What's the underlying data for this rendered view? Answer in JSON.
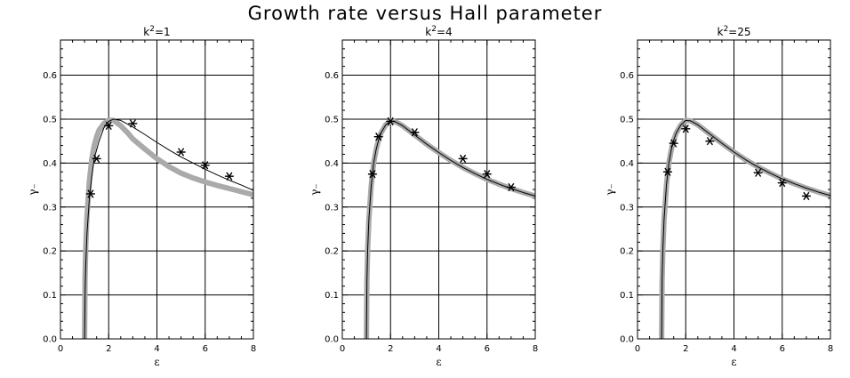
{
  "figure": {
    "title": "Growth rate versus Hall parameter"
  },
  "chart_data": [
    {
      "type": "line",
      "title_base": "k",
      "title_exp": "2",
      "title_tail": "=1",
      "xlabel": "ε",
      "ylabel": "γ₋",
      "xlim": [
        0,
        8
      ],
      "ylim": [
        0,
        0.68
      ],
      "xticks": [
        "0",
        "2",
        "4",
        "6",
        "8"
      ],
      "yticks": [
        "0.0",
        "0.1",
        "0.2",
        "0.3",
        "0.4",
        "0.5",
        "0.6"
      ],
      "grid": true,
      "series": [
        {
          "kind": "curve",
          "color": "#aaaaaa",
          "x": [
            1.0,
            1.02,
            1.05,
            1.1,
            1.15,
            1.2,
            1.3,
            1.4,
            1.5,
            1.6,
            1.8,
            2.0,
            2.2,
            2.5,
            2.8,
            3.0,
            3.5,
            4.0,
            4.5,
            5.0,
            5.5,
            6.0,
            6.5,
            7.0,
            7.5,
            8.0
          ],
          "y": [
            0.0,
            0.14,
            0.21,
            0.28,
            0.32,
            0.36,
            0.41,
            0.44,
            0.46,
            0.475,
            0.49,
            0.498,
            0.497,
            0.485,
            0.468,
            0.455,
            0.432,
            0.41,
            0.392,
            0.377,
            0.366,
            0.357,
            0.349,
            0.342,
            0.335,
            0.328
          ]
        },
        {
          "kind": "curve",
          "color": "#000000",
          "x": [
            1.0,
            1.02,
            1.05,
            1.1,
            1.15,
            1.2,
            1.3,
            1.4,
            1.5,
            1.6,
            1.8,
            2.0,
            2.2,
            2.5,
            3.0,
            3.5,
            4.0,
            4.5,
            5.0,
            5.5,
            6.0,
            6.5,
            7.0,
            7.5,
            8.0
          ],
          "y": [
            0.0,
            0.1,
            0.17,
            0.24,
            0.28,
            0.32,
            0.37,
            0.41,
            0.43,
            0.45,
            0.48,
            0.495,
            0.5,
            0.497,
            0.482,
            0.465,
            0.447,
            0.43,
            0.414,
            0.4,
            0.386,
            0.373,
            0.361,
            0.35,
            0.338
          ]
        },
        {
          "kind": "markers",
          "color": "#000000",
          "x": [
            1.25,
            1.5,
            2.0,
            3.0,
            5.0,
            6.0,
            7.0
          ],
          "y": [
            0.33,
            0.41,
            0.485,
            0.49,
            0.425,
            0.395,
            0.37
          ]
        }
      ]
    },
    {
      "type": "line",
      "title_base": "k",
      "title_exp": "2",
      "title_tail": "=4",
      "xlabel": "ε",
      "ylabel": "γ₋",
      "xlim": [
        0,
        8
      ],
      "ylim": [
        0,
        0.68
      ],
      "xticks": [
        "0",
        "2",
        "4",
        "6",
        "8"
      ],
      "yticks": [
        "0.0",
        "0.1",
        "0.2",
        "0.3",
        "0.4",
        "0.5",
        "0.6"
      ],
      "grid": true,
      "series": [
        {
          "kind": "curve",
          "color": "#aaaaaa",
          "x": [
            1.0,
            1.02,
            1.05,
            1.1,
            1.15,
            1.2,
            1.3,
            1.4,
            1.5,
            1.6,
            1.8,
            2.0,
            2.2,
            2.5,
            3.0,
            3.5,
            4.0,
            4.5,
            5.0,
            5.5,
            6.0,
            6.5,
            7.0,
            7.5,
            8.0
          ],
          "y": [
            0.0,
            0.13,
            0.2,
            0.27,
            0.31,
            0.35,
            0.4,
            0.43,
            0.452,
            0.468,
            0.487,
            0.495,
            0.494,
            0.485,
            0.464,
            0.443,
            0.424,
            0.406,
            0.39,
            0.376,
            0.363,
            0.352,
            0.342,
            0.333,
            0.325
          ]
        },
        {
          "kind": "curve",
          "color": "#000000",
          "x": [
            1.0,
            1.02,
            1.05,
            1.1,
            1.15,
            1.2,
            1.3,
            1.4,
            1.5,
            1.6,
            1.8,
            2.0,
            2.2,
            2.5,
            3.0,
            3.5,
            4.0,
            4.5,
            5.0,
            5.5,
            6.0,
            6.5,
            7.0,
            7.5,
            8.0
          ],
          "y": [
            0.0,
            0.13,
            0.2,
            0.27,
            0.31,
            0.35,
            0.4,
            0.43,
            0.452,
            0.468,
            0.487,
            0.495,
            0.494,
            0.485,
            0.464,
            0.443,
            0.424,
            0.406,
            0.39,
            0.376,
            0.363,
            0.352,
            0.342,
            0.333,
            0.325
          ]
        },
        {
          "kind": "markers",
          "color": "#000000",
          "x": [
            1.25,
            1.5,
            2.0,
            3.0,
            5.0,
            6.0,
            7.0
          ],
          "y": [
            0.375,
            0.46,
            0.495,
            0.47,
            0.41,
            0.375,
            0.345
          ]
        }
      ]
    },
    {
      "type": "line",
      "title_base": "k",
      "title_exp": "2",
      "title_tail": "=25",
      "xlabel": "ε",
      "ylabel": "γ₋",
      "xlim": [
        0,
        8
      ],
      "ylim": [
        0,
        0.68
      ],
      "xticks": [
        "0",
        "2",
        "4",
        "6",
        "8"
      ],
      "yticks": [
        "0.0",
        "0.1",
        "0.2",
        "0.3",
        "0.4",
        "0.5",
        "0.6"
      ],
      "grid": true,
      "series": [
        {
          "kind": "curve",
          "color": "#aaaaaa",
          "x": [
            1.0,
            1.02,
            1.05,
            1.1,
            1.15,
            1.2,
            1.3,
            1.4,
            1.5,
            1.6,
            1.8,
            2.0,
            2.2,
            2.5,
            3.0,
            3.5,
            4.0,
            4.5,
            5.0,
            5.5,
            6.0,
            6.5,
            7.0,
            7.5,
            8.0
          ],
          "y": [
            0.0,
            0.13,
            0.2,
            0.27,
            0.31,
            0.35,
            0.4,
            0.43,
            0.452,
            0.468,
            0.487,
            0.497,
            0.496,
            0.487,
            0.466,
            0.445,
            0.425,
            0.407,
            0.391,
            0.377,
            0.364,
            0.353,
            0.343,
            0.334,
            0.326
          ]
        },
        {
          "kind": "curve",
          "color": "#000000",
          "x": [
            1.0,
            1.02,
            1.05,
            1.1,
            1.15,
            1.2,
            1.3,
            1.4,
            1.5,
            1.6,
            1.8,
            2.0,
            2.2,
            2.5,
            3.0,
            3.5,
            4.0,
            4.5,
            5.0,
            5.5,
            6.0,
            6.5,
            7.0,
            7.5,
            8.0
          ],
          "y": [
            0.0,
            0.13,
            0.2,
            0.27,
            0.31,
            0.35,
            0.4,
            0.43,
            0.452,
            0.468,
            0.487,
            0.497,
            0.496,
            0.487,
            0.466,
            0.445,
            0.425,
            0.407,
            0.391,
            0.377,
            0.364,
            0.353,
            0.343,
            0.334,
            0.326
          ]
        },
        {
          "kind": "markers",
          "color": "#000000",
          "x": [
            1.25,
            1.5,
            2.0,
            3.0,
            5.0,
            6.0,
            7.0
          ],
          "y": [
            0.38,
            0.445,
            0.478,
            0.45,
            0.378,
            0.355,
            0.325
          ]
        }
      ]
    }
  ]
}
